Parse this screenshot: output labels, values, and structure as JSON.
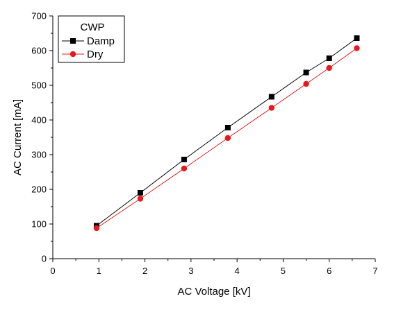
{
  "chart_data": {
    "type": "line",
    "title": "",
    "xlabel": "AC Voltage [kV]",
    "ylabel": "AC Current [mA]",
    "xlim": [
      0,
      7
    ],
    "ylim": [
      0,
      700
    ],
    "x_ticks": [
      0,
      1,
      2,
      3,
      4,
      5,
      6,
      7
    ],
    "y_ticks": [
      0,
      100,
      200,
      300,
      400,
      500,
      600,
      700
    ],
    "grid": false,
    "legend": {
      "title": "CWP",
      "placement": "top-left"
    },
    "series": [
      {
        "name": "Damp",
        "color": "#000000",
        "marker": "square",
        "x": [
          0.95,
          1.9,
          2.85,
          3.8,
          4.75,
          5.5,
          6.0,
          6.6
        ],
        "y": [
          95,
          190,
          286,
          378,
          467,
          537,
          578,
          636
        ]
      },
      {
        "name": "Dry",
        "color": "#e8191c",
        "marker": "circle",
        "x": [
          0.95,
          1.9,
          2.85,
          3.8,
          4.75,
          5.5,
          6.0,
          6.6
        ],
        "y": [
          88,
          173,
          260,
          348,
          435,
          504,
          550,
          607
        ]
      }
    ]
  }
}
